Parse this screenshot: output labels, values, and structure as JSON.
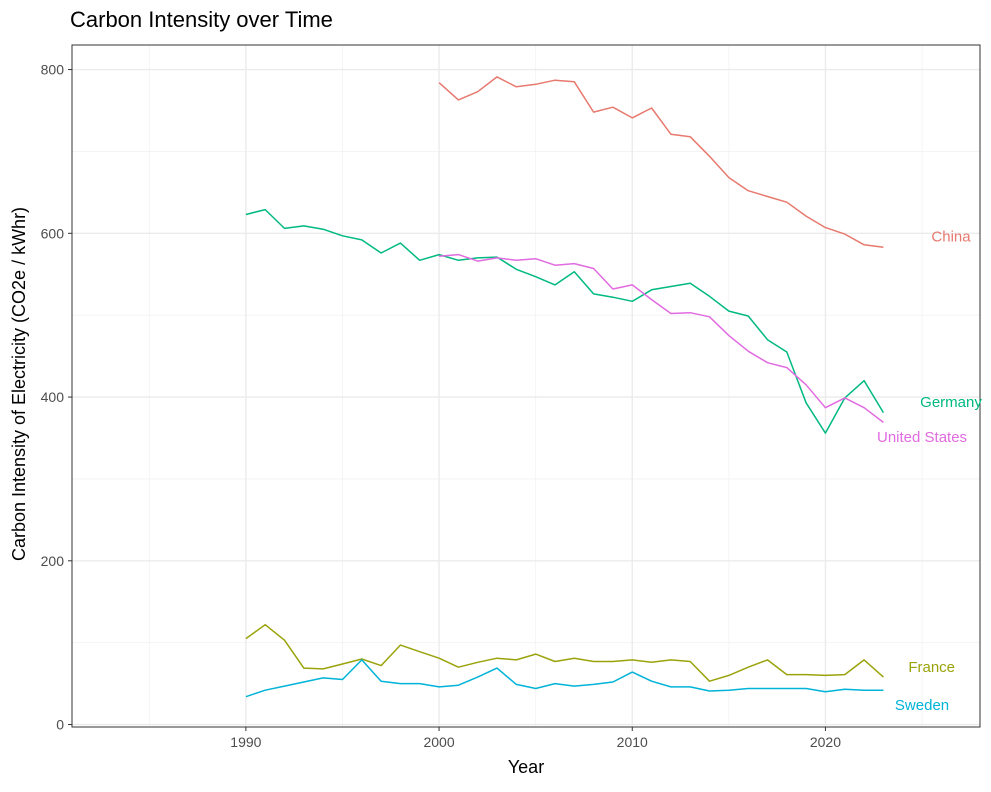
{
  "chart_data": {
    "type": "line",
    "title": "Carbon Intensity over Time",
    "xlabel": "Year",
    "ylabel": "Carbon Intensity of Electricity (CO2e / kWhr)",
    "xlim": [
      1981,
      2028
    ],
    "ylim": [
      -3,
      830
    ],
    "x_ticks": [
      1990,
      2000,
      2010,
      2020
    ],
    "y_ticks": [
      0,
      200,
      400,
      600,
      800
    ],
    "grid": true,
    "legend": "none (direct labels at line ends)",
    "series": [
      {
        "name": "China",
        "color": "#E7796E",
        "label_at": [
          2026.5,
          596
        ],
        "x": [
          2000,
          2001,
          2002,
          2003,
          2004,
          2005,
          2006,
          2007,
          2008,
          2009,
          2010,
          2011,
          2012,
          2013,
          2014,
          2015,
          2016,
          2017,
          2018,
          2019,
          2020,
          2021,
          2022,
          2023
        ],
        "y": [
          784,
          763,
          773,
          791,
          779,
          782,
          787,
          785,
          748,
          754,
          741,
          753,
          721,
          718,
          694,
          668,
          652,
          645,
          638,
          621,
          607,
          599,
          586,
          583
        ]
      },
      {
        "name": "Germany",
        "color": "#00B981",
        "label_at": [
          2026.5,
          394
        ],
        "x": [
          1990,
          1991,
          1992,
          1993,
          1994,
          1995,
          1996,
          1997,
          1998,
          1999,
          2000,
          2001,
          2002,
          2003,
          2004,
          2005,
          2006,
          2007,
          2008,
          2009,
          2010,
          2011,
          2012,
          2013,
          2014,
          2015,
          2016,
          2017,
          2018,
          2019,
          2020,
          2021,
          2022,
          2023
        ],
        "y": [
          623,
          629,
          606,
          609,
          605,
          597,
          592,
          576,
          588,
          567,
          574,
          567,
          570,
          571,
          556,
          547,
          537,
          553,
          526,
          522,
          517,
          531,
          535,
          539,
          523,
          505,
          499,
          470,
          455,
          393,
          356,
          399,
          420,
          381
        ]
      },
      {
        "name": "United States",
        "color": "#E16BE0",
        "label_at": [
          2025,
          351
        ],
        "x": [
          2000,
          2001,
          2002,
          2003,
          2004,
          2005,
          2006,
          2007,
          2008,
          2009,
          2010,
          2011,
          2012,
          2013,
          2014,
          2015,
          2016,
          2017,
          2018,
          2019,
          2020,
          2021,
          2022,
          2023
        ],
        "y": [
          572,
          574,
          566,
          570,
          567,
          569,
          561,
          563,
          557,
          532,
          537,
          519,
          502,
          503,
          498,
          475,
          456,
          442,
          436,
          415,
          387,
          399,
          387,
          369
        ]
      },
      {
        "name": "France",
        "color": "#9AA30B",
        "label_at": [
          2025.5,
          70
        ],
        "x": [
          1990,
          1991,
          1992,
          1993,
          1994,
          1995,
          1996,
          1997,
          1998,
          1999,
          2000,
          2001,
          2002,
          2003,
          2004,
          2005,
          2006,
          2007,
          2008,
          2009,
          2010,
          2011,
          2012,
          2013,
          2014,
          2015,
          2016,
          2017,
          2018,
          2019,
          2020,
          2021,
          2022,
          2023
        ],
        "y": [
          105,
          122,
          103,
          69,
          68,
          74,
          80,
          72,
          97,
          89,
          81,
          70,
          76,
          81,
          79,
          86,
          77,
          81,
          77,
          77,
          79,
          76,
          79,
          77,
          53,
          60,
          70,
          79,
          61,
          61,
          60,
          61,
          79,
          58
        ]
      },
      {
        "name": "Sweden",
        "color": "#00B3D8",
        "label_at": [
          2025,
          24
        ],
        "x": [
          1990,
          1991,
          1992,
          1993,
          1994,
          1995,
          1996,
          1997,
          1998,
          1999,
          2000,
          2001,
          2002,
          2003,
          2004,
          2005,
          2006,
          2007,
          2008,
          2009,
          2010,
          2011,
          2012,
          2013,
          2014,
          2015,
          2016,
          2017,
          2018,
          2019,
          2020,
          2021,
          2022,
          2023
        ],
        "y": [
          34,
          42,
          47,
          52,
          57,
          55,
          79,
          53,
          50,
          50,
          46,
          48,
          58,
          69,
          49,
          44,
          50,
          47,
          49,
          52,
          64,
          53,
          46,
          46,
          41,
          42,
          44,
          44,
          44,
          44,
          40,
          43,
          42,
          42
        ]
      }
    ]
  }
}
